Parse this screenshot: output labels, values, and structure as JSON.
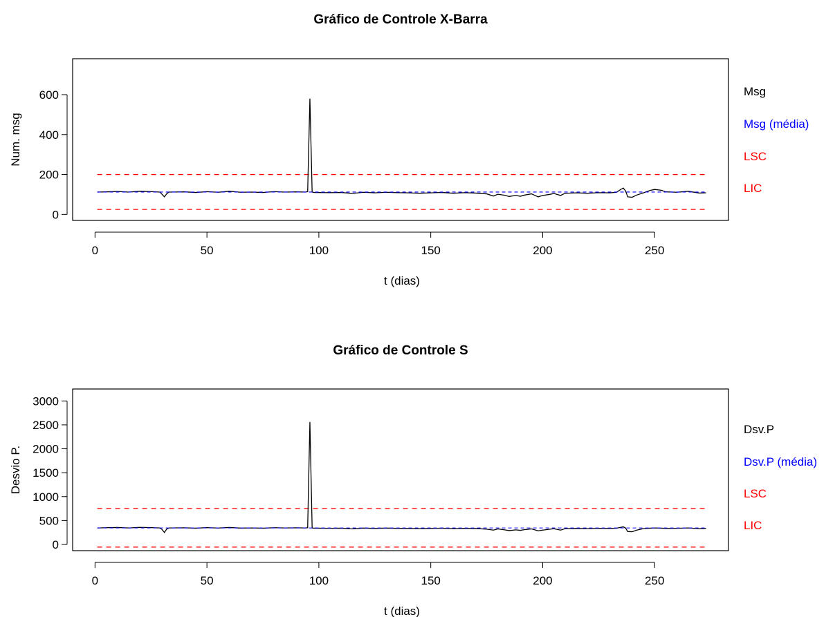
{
  "colors": {
    "observed": "#000000",
    "mean": "#0000ff",
    "limit": "#ff0000"
  },
  "chart_data": [
    {
      "type": "line",
      "title": "Gráfico de Controle X-Barra",
      "xlabel": "t (dias)",
      "ylabel": "Num. msg",
      "xlim": [
        -10,
        283
      ],
      "ylim": [
        -30,
        780
      ],
      "xticks": [
        0,
        50,
        100,
        150,
        200,
        250
      ],
      "yticks": [
        0,
        200,
        400,
        600
      ],
      "grid": false,
      "legend_position": "right",
      "legend": [
        {
          "label": "Msg",
          "color": "#000000"
        },
        {
          "label": "Msg (média)",
          "color": "#0000ff"
        },
        {
          "label": "LSC",
          "color": "#ff0000"
        },
        {
          "label": "LIC",
          "color": "#ff0000"
        }
      ],
      "series": [
        {
          "name": "Msg",
          "style": "solid",
          "points": [
            [
              1,
              112
            ],
            [
              5,
              113
            ],
            [
              10,
              115
            ],
            [
              15,
              112
            ],
            [
              20,
              116
            ],
            [
              25,
              114
            ],
            [
              29,
              112
            ],
            [
              30,
              100
            ],
            [
              31,
              88
            ],
            [
              32,
              103
            ],
            [
              33,
              112
            ],
            [
              40,
              113
            ],
            [
              45,
              110
            ],
            [
              50,
              114
            ],
            [
              55,
              111
            ],
            [
              60,
              116
            ],
            [
              65,
              111
            ],
            [
              70,
              112
            ],
            [
              75,
              110
            ],
            [
              80,
              114
            ],
            [
              85,
              112
            ],
            [
              90,
              113
            ],
            [
              94,
              112
            ],
            [
              95,
              114
            ],
            [
              96,
              580
            ],
            [
              97,
              112
            ],
            [
              98,
              110
            ],
            [
              105,
              109
            ],
            [
              110,
              110
            ],
            [
              115,
              105
            ],
            [
              120,
              111
            ],
            [
              125,
              108
            ],
            [
              130,
              111
            ],
            [
              135,
              109
            ],
            [
              140,
              108
            ],
            [
              145,
              106
            ],
            [
              150,
              108
            ],
            [
              155,
              110
            ],
            [
              160,
              106
            ],
            [
              165,
              109
            ],
            [
              170,
              107
            ],
            [
              175,
              103
            ],
            [
              178,
              92
            ],
            [
              180,
              101
            ],
            [
              183,
              96
            ],
            [
              185,
              90
            ],
            [
              188,
              95
            ],
            [
              190,
              91
            ],
            [
              192,
              97
            ],
            [
              195,
              103
            ],
            [
              198,
              88
            ],
            [
              200,
              95
            ],
            [
              203,
              100
            ],
            [
              205,
              105
            ],
            [
              208,
              95
            ],
            [
              210,
              106
            ],
            [
              215,
              108
            ],
            [
              220,
              106
            ],
            [
              225,
              109
            ],
            [
              230,
              108
            ],
            [
              233,
              111
            ],
            [
              235,
              126
            ],
            [
              236,
              132
            ],
            [
              237,
              118
            ],
            [
              238,
              88
            ],
            [
              240,
              86
            ],
            [
              242,
              97
            ],
            [
              245,
              108
            ],
            [
              248,
              120
            ],
            [
              250,
              125
            ],
            [
              253,
              121
            ],
            [
              255,
              113
            ],
            [
              260,
              111
            ],
            [
              265,
              116
            ],
            [
              270,
              107
            ],
            [
              273,
              108
            ]
          ]
        },
        {
          "name": "Msg (média)",
          "style": "dashed",
          "points": [
            [
              1,
              112
            ],
            [
              273,
              112
            ]
          ]
        },
        {
          "name": "LSC",
          "style": "dashed",
          "points": [
            [
              1,
              200
            ],
            [
              273,
              200
            ]
          ]
        },
        {
          "name": "LIC",
          "style": "dashed",
          "points": [
            [
              1,
              25
            ],
            [
              273,
              25
            ]
          ]
        }
      ]
    },
    {
      "type": "line",
      "title": "Gráfico de Controle S",
      "xlabel": "t (dias)",
      "ylabel": "Desvio P.",
      "xlim": [
        -10,
        283
      ],
      "ylim": [
        -130,
        3250
      ],
      "xticks": [
        0,
        50,
        100,
        150,
        200,
        250
      ],
      "yticks": [
        0,
        500,
        1000,
        1500,
        2000,
        2500,
        3000
      ],
      "grid": false,
      "legend_position": "right",
      "legend": [
        {
          "label": "Dsv.P",
          "color": "#000000"
        },
        {
          "label": "Dsv.P (média)",
          "color": "#0000ff"
        },
        {
          "label": "LSC",
          "color": "#ff0000"
        },
        {
          "label": "LIC",
          "color": "#ff0000"
        }
      ],
      "series": [
        {
          "name": "Dsv.P",
          "style": "solid",
          "points": [
            [
              1,
              345
            ],
            [
              5,
              350
            ],
            [
              10,
              355
            ],
            [
              15,
              345
            ],
            [
              20,
              358
            ],
            [
              25,
              352
            ],
            [
              29,
              345
            ],
            [
              30,
              310
            ],
            [
              31,
              250
            ],
            [
              32,
              320
            ],
            [
              33,
              345
            ],
            [
              40,
              348
            ],
            [
              45,
              340
            ],
            [
              50,
              352
            ],
            [
              55,
              343
            ],
            [
              60,
              355
            ],
            [
              65,
              342
            ],
            [
              70,
              345
            ],
            [
              75,
              340
            ],
            [
              80,
              350
            ],
            [
              85,
              345
            ],
            [
              90,
              348
            ],
            [
              94,
              345
            ],
            [
              95,
              350
            ],
            [
              96,
              2560
            ],
            [
              97,
              345
            ],
            [
              98,
              340
            ],
            [
              105,
              338
            ],
            [
              110,
              340
            ],
            [
              115,
              325
            ],
            [
              120,
              342
            ],
            [
              125,
              335
            ],
            [
              130,
              342
            ],
            [
              135,
              337
            ],
            [
              140,
              335
            ],
            [
              145,
              330
            ],
            [
              150,
              335
            ],
            [
              155,
              340
            ],
            [
              160,
              330
            ],
            [
              165,
              337
            ],
            [
              170,
              333
            ],
            [
              175,
              320
            ],
            [
              178,
              300
            ],
            [
              180,
              325
            ],
            [
              183,
              305
            ],
            [
              185,
              290
            ],
            [
              188,
              305
            ],
            [
              190,
              295
            ],
            [
              192,
              310
            ],
            [
              195,
              325
            ],
            [
              198,
              285
            ],
            [
              200,
              300
            ],
            [
              203,
              318
            ],
            [
              205,
              328
            ],
            [
              208,
              300
            ],
            [
              210,
              330
            ],
            [
              215,
              335
            ],
            [
              220,
              330
            ],
            [
              225,
              338
            ],
            [
              230,
              335
            ],
            [
              233,
              340
            ],
            [
              235,
              360
            ],
            [
              236,
              370
            ],
            [
              237,
              345
            ],
            [
              238,
              270
            ],
            [
              240,
              265
            ],
            [
              242,
              300
            ],
            [
              245,
              330
            ],
            [
              248,
              340
            ],
            [
              250,
              345
            ],
            [
              253,
              340
            ],
            [
              255,
              335
            ],
            [
              260,
              338
            ],
            [
              265,
              345
            ],
            [
              270,
              330
            ],
            [
              273,
              335
            ]
          ]
        },
        {
          "name": "Dsv.P (média)",
          "style": "dashed",
          "points": [
            [
              1,
              345
            ],
            [
              273,
              345
            ]
          ]
        },
        {
          "name": "LSC",
          "style": "dashed",
          "points": [
            [
              1,
              750
            ],
            [
              273,
              750
            ]
          ]
        },
        {
          "name": "LIC",
          "style": "dashed",
          "points": [
            [
              1,
              -55
            ],
            [
              273,
              -55
            ]
          ]
        }
      ]
    }
  ]
}
